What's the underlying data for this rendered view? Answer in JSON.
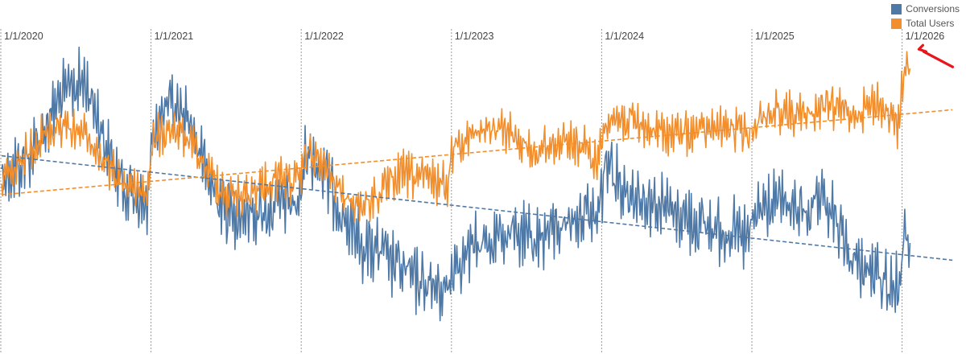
{
  "chart_data": {
    "type": "line",
    "title": "",
    "xlabel": "",
    "ylabel": "",
    "x_ticks": [
      "1/1/2020",
      "1/1/2021",
      "1/1/2022",
      "1/1/2023",
      "1/1/2024",
      "1/1/2025",
      "1/1/2026"
    ],
    "grid": "vertical dotted lines at each year",
    "legend_position": "top-right",
    "series": [
      {
        "name": "Conversions",
        "color": "#4e79a7",
        "anchors": [
          [
            "2020-01-01",
            0.49
          ],
          [
            "2020-02-15",
            0.47
          ],
          [
            "2020-03-20",
            0.42
          ],
          [
            "2020-04-20",
            0.35
          ],
          [
            "2020-05-20",
            0.28
          ],
          [
            "2020-06-20",
            0.25
          ],
          [
            "2020-07-20",
            0.23
          ],
          [
            "2020-08-20",
            0.32
          ],
          [
            "2020-09-20",
            0.45
          ],
          [
            "2020-10-20",
            0.52
          ],
          [
            "2020-11-20",
            0.55
          ],
          [
            "2020-12-20",
            0.59
          ],
          [
            "2021-01-05",
            0.35
          ],
          [
            "2021-02-15",
            0.3
          ],
          [
            "2021-04-01",
            0.33
          ],
          [
            "2021-05-15",
            0.5
          ],
          [
            "2021-07-01",
            0.6
          ],
          [
            "2021-08-20",
            0.6
          ],
          [
            "2021-10-01",
            0.6
          ],
          [
            "2021-11-15",
            0.57
          ],
          [
            "2021-12-25",
            0.58
          ],
          [
            "2022-01-10",
            0.42
          ],
          [
            "2022-03-01",
            0.5
          ],
          [
            "2022-04-15",
            0.62
          ],
          [
            "2022-06-01",
            0.7
          ],
          [
            "2022-07-15",
            0.72
          ],
          [
            "2022-09-01",
            0.76
          ],
          [
            "2022-10-15",
            0.8
          ],
          [
            "2022-12-20",
            0.82
          ],
          [
            "2023-01-05",
            0.74
          ],
          [
            "2023-03-01",
            0.7
          ],
          [
            "2023-05-01",
            0.66
          ],
          [
            "2023-07-15",
            0.68
          ],
          [
            "2023-10-01",
            0.63
          ],
          [
            "2023-11-15",
            0.6
          ],
          [
            "2023-12-20",
            0.62
          ],
          [
            "2024-01-10",
            0.45
          ],
          [
            "2024-03-01",
            0.54
          ],
          [
            "2024-05-01",
            0.57
          ],
          [
            "2024-07-01",
            0.6
          ],
          [
            "2024-09-01",
            0.64
          ],
          [
            "2024-11-01",
            0.65
          ],
          [
            "2024-12-20",
            0.68
          ],
          [
            "2025-01-10",
            0.6
          ],
          [
            "2025-03-01",
            0.57
          ],
          [
            "2025-05-01",
            0.6
          ],
          [
            "2025-07-01",
            0.58
          ],
          [
            "2025-09-01",
            0.74
          ],
          [
            "2025-11-01",
            0.78
          ],
          [
            "2025-12-20",
            0.82
          ],
          [
            "2026-01-05",
            0.67
          ],
          [
            "2026-01-20",
            0.72
          ]
        ],
        "trend": [
          [
            "2020-01-01",
            0.44
          ],
          [
            "2026-05-01",
            0.735
          ]
        ]
      },
      {
        "name": "Total Users",
        "color": "#f28e2b",
        "anchors": [
          [
            "2020-01-01",
            0.52
          ],
          [
            "2020-02-15",
            0.47
          ],
          [
            "2020-03-20",
            0.4
          ],
          [
            "2020-04-20",
            0.38
          ],
          [
            "2020-05-20",
            0.35
          ],
          [
            "2020-06-20",
            0.36
          ],
          [
            "2020-07-20",
            0.38
          ],
          [
            "2020-08-20",
            0.43
          ],
          [
            "2020-09-20",
            0.48
          ],
          [
            "2020-10-20",
            0.51
          ],
          [
            "2020-11-20",
            0.53
          ],
          [
            "2020-12-20",
            0.54
          ],
          [
            "2021-01-05",
            0.4
          ],
          [
            "2021-02-15",
            0.36
          ],
          [
            "2021-04-01",
            0.4
          ],
          [
            "2021-05-15",
            0.48
          ],
          [
            "2021-07-01",
            0.55
          ],
          [
            "2021-08-20",
            0.55
          ],
          [
            "2021-10-01",
            0.52
          ],
          [
            "2021-11-15",
            0.5
          ],
          [
            "2021-12-25",
            0.52
          ],
          [
            "2022-01-10",
            0.42
          ],
          [
            "2022-03-01",
            0.48
          ],
          [
            "2022-04-15",
            0.56
          ],
          [
            "2022-06-01",
            0.58
          ],
          [
            "2022-07-15",
            0.54
          ],
          [
            "2022-09-01",
            0.49
          ],
          [
            "2022-10-15",
            0.5
          ],
          [
            "2022-12-20",
            0.52
          ],
          [
            "2023-01-05",
            0.4
          ],
          [
            "2023-03-01",
            0.38
          ],
          [
            "2023-05-01",
            0.36
          ],
          [
            "2023-07-15",
            0.43
          ],
          [
            "2023-10-01",
            0.39
          ],
          [
            "2023-11-15",
            0.42
          ],
          [
            "2023-12-20",
            0.46
          ],
          [
            "2024-01-10",
            0.33
          ],
          [
            "2024-03-01",
            0.34
          ],
          [
            "2024-05-01",
            0.37
          ],
          [
            "2024-07-01",
            0.38
          ],
          [
            "2024-09-01",
            0.37
          ],
          [
            "2024-11-01",
            0.36
          ],
          [
            "2024-12-20",
            0.38
          ],
          [
            "2025-01-10",
            0.34
          ],
          [
            "2025-03-01",
            0.31
          ],
          [
            "2025-05-01",
            0.33
          ],
          [
            "2025-07-01",
            0.3
          ],
          [
            "2025-09-01",
            0.32
          ],
          [
            "2025-11-01",
            0.29
          ],
          [
            "2025-12-20",
            0.36
          ],
          [
            "2026-01-05",
            0.18
          ],
          [
            "2026-01-20",
            0.2
          ]
        ],
        "trend": [
          [
            "2020-01-01",
            0.55
          ],
          [
            "2026-05-01",
            0.31
          ]
        ]
      }
    ],
    "annotation": {
      "type": "arrow",
      "color": "#e8151b",
      "points_to": [
        "2026-01-08",
        0.13
      ]
    }
  }
}
